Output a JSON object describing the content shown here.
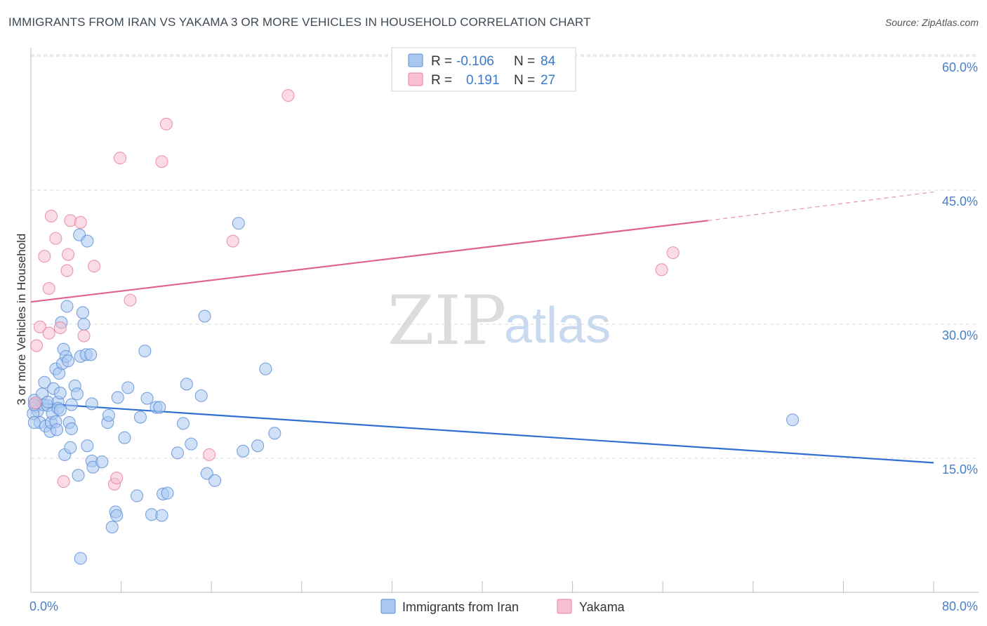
{
  "title": "IMMIGRANTS FROM IRAN VS YAKAMA 3 OR MORE VEHICLES IN HOUSEHOLD CORRELATION CHART",
  "source": "Source: ZipAtlas.com",
  "watermark": {
    "zip": "ZIP",
    "atlas": "atlas"
  },
  "legend": {
    "rows": [
      {
        "r_label": "R =",
        "r_value": "-0.106",
        "n_label": "N =",
        "n_value": "84",
        "color": "#a9c8f0",
        "stroke": "#5b8fd6"
      },
      {
        "r_label": "R =",
        "r_value": "0.191",
        "n_label": "N =",
        "n_value": "27",
        "color": "#f7bfd0",
        "stroke": "#e67fa0"
      }
    ]
  },
  "bottom_legend": [
    "Immigrants from Iran",
    "Yakama"
  ],
  "chart_data": {
    "type": "scatter",
    "ylabel": "3 or more Vehicles in Household",
    "xlabel": "",
    "xlim": [
      0,
      80
    ],
    "ylim": [
      0,
      60
    ],
    "x_tick_labels": [
      "0.0%",
      "80.0%"
    ],
    "y_tick_labels": [
      {
        "value": 15,
        "label": "15.0%"
      },
      {
        "value": 30,
        "label": "30.0%"
      },
      {
        "value": 45,
        "label": "45.0%"
      },
      {
        "value": 60,
        "label": "60.0%"
      }
    ],
    "grid": "horizontal dashed",
    "series": [
      {
        "name": "Immigrants from Iran",
        "color": "#a9c8f0",
        "stroke": "#5b8fd6",
        "trend": {
          "x0": 0,
          "y0": 21.2,
          "x1": 80,
          "y1": 14.5,
          "color": "#2e6fd1"
        },
        "points": [
          [
            0.3,
            21.5
          ],
          [
            0.4,
            20.8
          ],
          [
            0.6,
            20.3
          ],
          [
            0.8,
            19.0
          ],
          [
            1.0,
            22.2
          ],
          [
            1.1,
            21.0
          ],
          [
            1.2,
            23.5
          ],
          [
            1.3,
            18.6
          ],
          [
            1.5,
            20.9
          ],
          [
            1.5,
            21.3
          ],
          [
            1.7,
            18.0
          ],
          [
            1.8,
            19.0
          ],
          [
            1.9,
            20.0
          ],
          [
            2.0,
            22.8
          ],
          [
            2.2,
            19.1
          ],
          [
            2.3,
            18.2
          ],
          [
            2.4,
            21.3
          ],
          [
            2.4,
            20.6
          ],
          [
            2.6,
            20.4
          ],
          [
            2.2,
            25.0
          ],
          [
            2.5,
            24.5
          ],
          [
            2.6,
            22.3
          ],
          [
            2.7,
            30.2
          ],
          [
            2.8,
            25.6
          ],
          [
            2.9,
            27.2
          ],
          [
            3.0,
            15.4
          ],
          [
            3.1,
            26.4
          ],
          [
            3.2,
            32.0
          ],
          [
            3.3,
            25.9
          ],
          [
            3.4,
            19.0
          ],
          [
            3.5,
            16.2
          ],
          [
            3.6,
            18.3
          ],
          [
            3.6,
            21.0
          ],
          [
            3.9,
            23.1
          ],
          [
            4.1,
            22.2
          ],
          [
            4.2,
            13.1
          ],
          [
            4.3,
            40.0
          ],
          [
            4.4,
            26.4
          ],
          [
            4.6,
            31.3
          ],
          [
            4.7,
            30.0
          ],
          [
            4.9,
            26.6
          ],
          [
            5.0,
            39.3
          ],
          [
            5.0,
            16.4
          ],
          [
            5.3,
            26.6
          ],
          [
            5.4,
            14.7
          ],
          [
            5.5,
            14.0
          ],
          [
            5.4,
            21.1
          ],
          [
            6.3,
            14.6
          ],
          [
            6.8,
            19.0
          ],
          [
            6.9,
            19.8
          ],
          [
            7.2,
            7.3
          ],
          [
            7.5,
            9.0
          ],
          [
            7.6,
            8.6
          ],
          [
            7.7,
            21.8
          ],
          [
            8.3,
            17.3
          ],
          [
            8.6,
            22.9
          ],
          [
            9.4,
            10.8
          ],
          [
            9.7,
            19.6
          ],
          [
            10.1,
            27.0
          ],
          [
            10.3,
            21.7
          ],
          [
            10.7,
            8.7
          ],
          [
            11.1,
            20.7
          ],
          [
            11.4,
            20.7
          ],
          [
            11.6,
            8.6
          ],
          [
            11.7,
            11.0
          ],
          [
            12.1,
            11.1
          ],
          [
            13.0,
            15.6
          ],
          [
            13.5,
            18.9
          ],
          [
            13.8,
            23.3
          ],
          [
            14.2,
            16.6
          ],
          [
            15.1,
            22.0
          ],
          [
            15.4,
            30.9
          ],
          [
            15.6,
            13.3
          ],
          [
            16.3,
            12.5
          ],
          [
            18.4,
            41.3
          ],
          [
            18.8,
            15.8
          ],
          [
            20.1,
            16.4
          ],
          [
            20.8,
            25.0
          ],
          [
            21.6,
            17.8
          ],
          [
            4.4,
            3.8
          ],
          [
            67.5,
            19.3
          ],
          [
            0.2,
            20.0
          ],
          [
            0.3,
            19.0
          ],
          [
            0.3,
            21.0
          ]
        ]
      },
      {
        "name": "Yakama",
        "color": "#f7bfd0",
        "stroke": "#e67fa0",
        "trend": {
          "x0": 0,
          "y0": 32.5,
          "x1": 60,
          "y1": 41.6,
          "x2": 80,
          "y2": 44.8,
          "color": "#e0628b"
        },
        "points": [
          [
            0.4,
            21.2
          ],
          [
            0.5,
            27.6
          ],
          [
            0.8,
            29.7
          ],
          [
            1.2,
            37.6
          ],
          [
            1.6,
            29.0
          ],
          [
            1.6,
            34.0
          ],
          [
            1.8,
            42.1
          ],
          [
            2.2,
            39.6
          ],
          [
            2.6,
            29.6
          ],
          [
            2.9,
            12.4
          ],
          [
            3.2,
            36.0
          ],
          [
            3.3,
            37.8
          ],
          [
            3.5,
            41.6
          ],
          [
            4.4,
            41.4
          ],
          [
            4.7,
            28.7
          ],
          [
            5.6,
            36.5
          ],
          [
            7.4,
            12.1
          ],
          [
            7.6,
            12.8
          ],
          [
            7.9,
            48.6
          ],
          [
            8.8,
            32.7
          ],
          [
            11.6,
            48.2
          ],
          [
            12.0,
            52.4
          ],
          [
            15.8,
            15.4
          ],
          [
            17.9,
            39.3
          ],
          [
            22.8,
            55.6
          ],
          [
            55.9,
            36.1
          ],
          [
            56.9,
            38.0
          ]
        ]
      }
    ]
  }
}
